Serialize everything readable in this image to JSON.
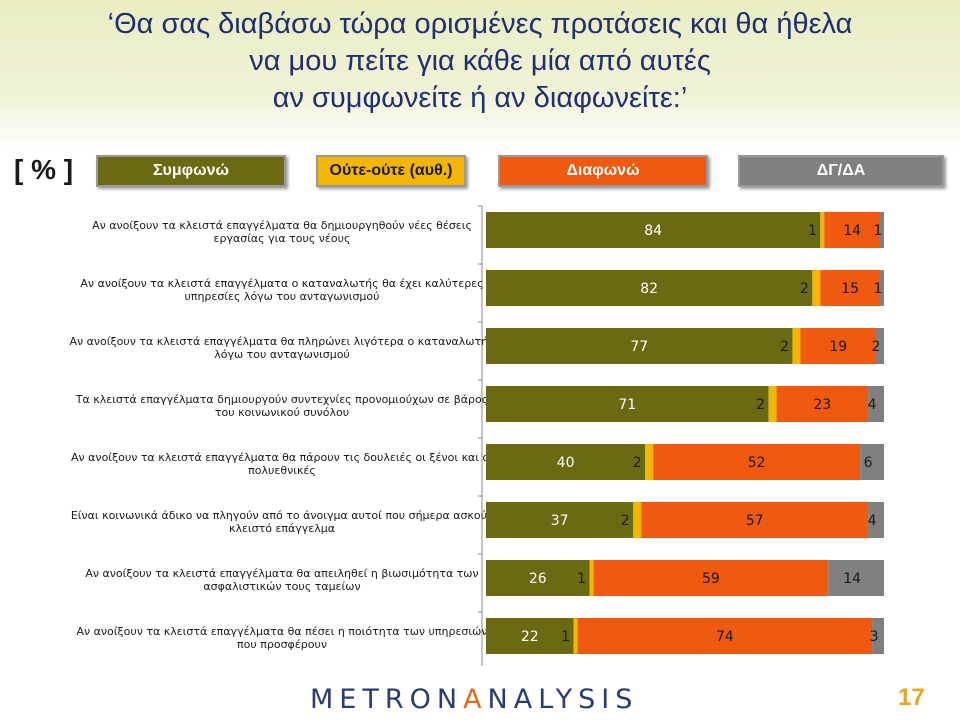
{
  "title": {
    "line1": "‘Θα σας διαβάσω τώρα ορισμένες προτάσεις και θα ήθελα",
    "line2": "να μου πείτε για κάθε μία από αυτές",
    "line3": "αν συμφωνείτε ή αν διαφωνείτε:’"
  },
  "unit_label": "[ % ]",
  "legend": [
    {
      "label": "Συμφωνώ",
      "color": "#6b6a12",
      "text_color": "#ffffff"
    },
    {
      "label": "Ούτε-ούτε (αυθ.)",
      "color": "#f4b600",
      "text_color": "#1a1a1a"
    },
    {
      "label": "Διαφωνώ",
      "color": "#f05a10",
      "text_color": "#ffffff"
    },
    {
      "label": "ΔΓ/ΔΑ",
      "color": "#808080",
      "text_color": "#ffffff"
    }
  ],
  "chart_data": {
    "type": "bar",
    "orientation": "horizontal-stacked",
    "categories": [
      "Αν ανοίξουν τα κλειστά επαγγέλματα θα δημιουργηθούν νέες θέσεις εργασίας για τους νέους",
      "Αν ανοίξουν τα κλειστά επαγγέλματα ο καταναλωτής θα έχει καλύτερες υπηρεσίες λόγω του ανταγωνισμού",
      "Αν ανοίξουν τα κλειστά επαγγέλματα θα πληρώνει λιγότερα ο καταναλωτής λόγω του ανταγωνισμού",
      "Τα κλειστά επαγγέλματα δημιουργούν συντεχνίες προνομιούχων σε βάρος του κοινωνικού συνόλου",
      "Αν ανοίξουν τα κλειστά επαγγέλματα θα πάρουν τις δουλειές οι ξένοι και οι πολυεθνικές",
      "Είναι κοινωνικά άδικο να πληγούν από το άνοιγμα αυτοί που σήμερα ασκούν κλειστό επάγγελμα",
      "Αν ανοίξουν τα κλειστά επαγγέλματα θα απειληθεί η βιωσιμότητα των ασφαλιστικών τους ταμείων",
      "Αν ανοίξουν τα κλειστά επαγγέλματα θα πέσει η ποιότητα των υπηρεσιών που προσφέρουν"
    ],
    "category_lines": [
      [
        "Αν ανοίξουν τα κλειστά επαγγέλματα θα δημιουργηθούν νέες θέσεις",
        "εργασίας για τους νέους"
      ],
      [
        "Αν ανοίξουν τα κλειστά επαγγέλματα ο καταναλωτής θα έχει καλύτερες",
        "υπηρεσίες λόγω του ανταγωνισμού"
      ],
      [
        "Αν ανοίξουν τα κλειστά επαγγέλματα θα πληρώνει λιγότερα ο καταναλωτής",
        "λόγω του ανταγωνισμού"
      ],
      [
        "Τα κλειστά επαγγέλματα δημιουργούν συντεχνίες προνομιούχων σε βάρος",
        "του κοινωνικού συνόλου"
      ],
      [
        "Αν ανοίξουν τα κλειστά επαγγέλματα θα πάρουν τις δουλειές οι ξένοι και οι",
        "πολυεθνικές"
      ],
      [
        "Είναι κοινωνικά άδικο να πληγούν από το άνοιγμα αυτοί που σήμερα ασκούν",
        "κλειστό επάγγελμα"
      ],
      [
        "Αν ανοίξουν τα κλειστά επαγγέλματα θα απειληθεί η βιωσιμότητα των",
        "ασφαλιστικών τους ταμείων"
      ],
      [
        "Αν ανοίξουν τα κλειστά επαγγέλματα θα πέσει η ποιότητα των υπηρεσιών",
        "που προσφέρουν"
      ]
    ],
    "series": [
      {
        "name": "Συμφωνώ",
        "values": [
          84,
          82,
          77,
          71,
          40,
          37,
          26,
          22
        ]
      },
      {
        "name": "Ούτε-ούτε (αυθ.)",
        "values": [
          1,
          2,
          2,
          2,
          2,
          2,
          1,
          1
        ]
      },
      {
        "name": "Διαφωνώ",
        "values": [
          14,
          15,
          19,
          23,
          52,
          57,
          59,
          74
        ]
      },
      {
        "name": "ΔΓ/ΔΑ",
        "values": [
          1,
          1,
          2,
          4,
          6,
          4,
          14,
          3
        ]
      }
    ],
    "xlim": [
      0,
      100
    ]
  },
  "footer": {
    "logo_part1": "METRON",
    "logo_part2": "A",
    "logo_part3": "NALYSIS",
    "page_number": "17"
  }
}
